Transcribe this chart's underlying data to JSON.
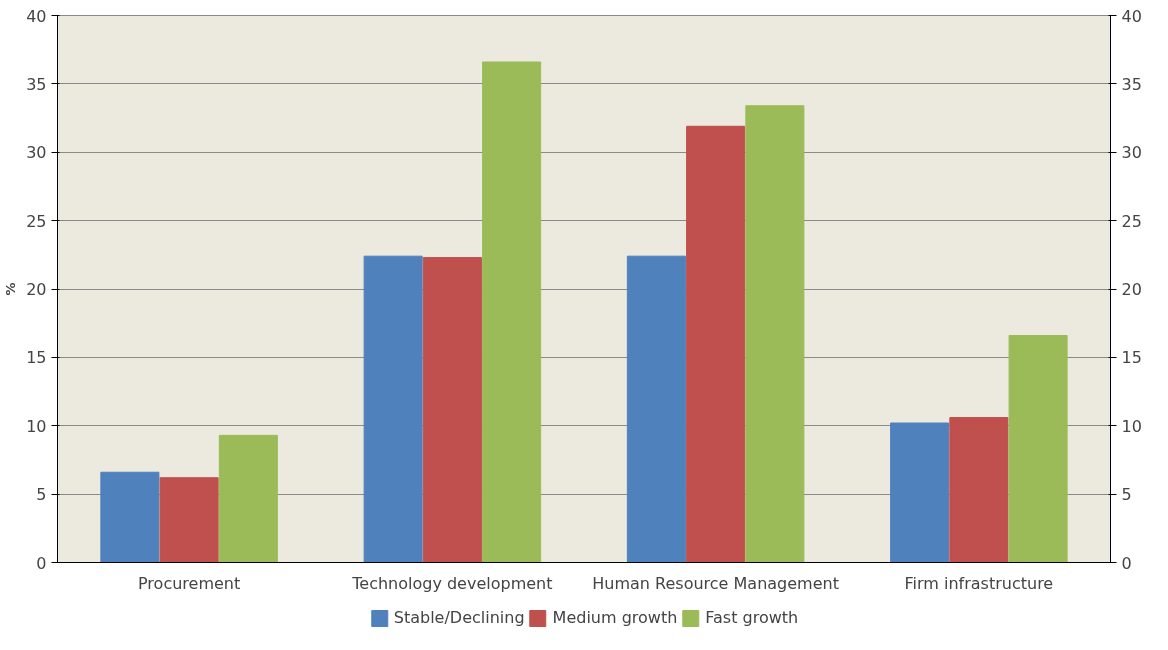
{
  "chart_data": {
    "type": "bar",
    "ylabel": "%",
    "categories": [
      "Procurement",
      "Technology development",
      "Human Resource Management",
      "Firm infrastructure"
    ],
    "series": [
      {
        "name": "Stable/Declining",
        "color": "#4f81bd",
        "values": [
          6.6,
          22.4,
          22.4,
          10.2
        ]
      },
      {
        "name": "Medium growth",
        "color": "#c0504d",
        "values": [
          6.2,
          22.3,
          31.9,
          10.6
        ]
      },
      {
        "name": "Fast growth",
        "color": "#9bbb59",
        "values": [
          9.3,
          36.6,
          33.4,
          16.6
        ]
      }
    ],
    "ylim": [
      0,
      40
    ],
    "yticks": [
      0,
      5,
      10,
      15,
      20,
      25,
      30,
      35,
      40
    ],
    "y2lim": [
      0,
      40
    ],
    "y2ticks": [
      0,
      5,
      10,
      15,
      20,
      25,
      30,
      35,
      40
    ],
    "grid": "y",
    "legend": "bottom"
  }
}
